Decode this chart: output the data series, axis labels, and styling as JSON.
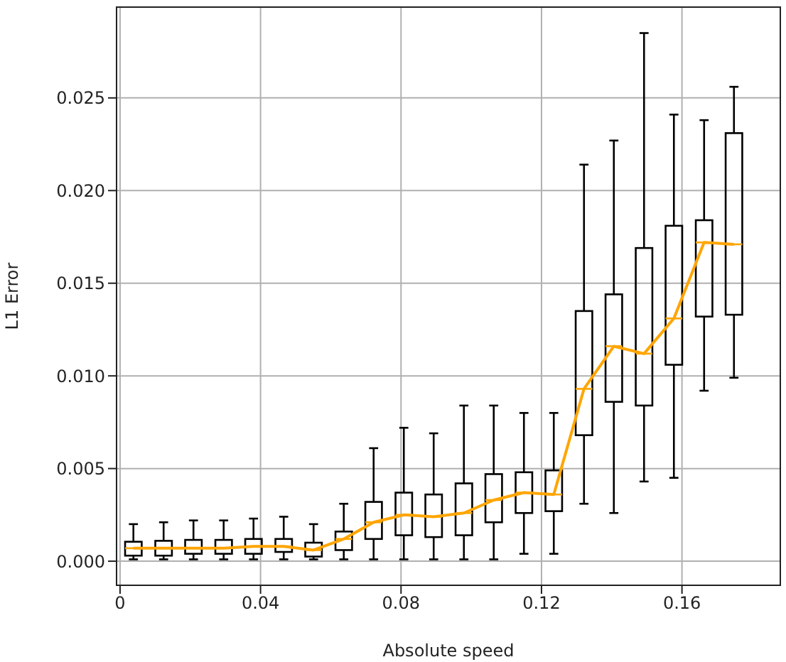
{
  "chart_data": {
    "type": "box",
    "xlabel": "Absolute speed",
    "ylabel": "L1 Error",
    "xlim": [
      -0.001,
      0.188
    ],
    "ylim": [
      -0.0013,
      0.0299
    ],
    "xticks": [
      0,
      0.04,
      0.08,
      0.12,
      0.16
    ],
    "yticks": [
      {
        "value": 0,
        "label": "0.000"
      },
      {
        "value": 0.005,
        "label": "0.005"
      },
      {
        "value": 0.01,
        "label": "0.010"
      },
      {
        "value": 0.015,
        "label": "0.015"
      },
      {
        "value": 0.02,
        "label": "0.020"
      },
      {
        "value": 0.025,
        "label": "0.025"
      }
    ],
    "grid": true,
    "series": [
      {
        "color": "#000000",
        "x": [
          0.0038,
          0.0124,
          0.0209,
          0.0295,
          0.038,
          0.0466,
          0.0551,
          0.0637,
          0.0722,
          0.0808,
          0.0893,
          0.0979,
          0.1064,
          0.115,
          0.1235,
          0.1321,
          0.1406,
          0.1492,
          0.1577,
          0.1663,
          0.1748
        ],
        "boxes": [
          {
            "low": 0.0001,
            "q1": 0.0003,
            "median": 0.0007,
            "q3": 0.00105,
            "high": 0.002
          },
          {
            "low": 0.0001,
            "q1": 0.0003,
            "median": 0.0007,
            "q3": 0.0011,
            "high": 0.0021
          },
          {
            "low": 0.0001,
            "q1": 0.0004,
            "median": 0.0007,
            "q3": 0.00115,
            "high": 0.0022
          },
          {
            "low": 0.0001,
            "q1": 0.0004,
            "median": 0.0007,
            "q3": 0.00115,
            "high": 0.0022
          },
          {
            "low": 0.0001,
            "q1": 0.0004,
            "median": 0.0008,
            "q3": 0.0012,
            "high": 0.0023
          },
          {
            "low": 0.0001,
            "q1": 0.0005,
            "median": 0.0008,
            "q3": 0.0012,
            "high": 0.0024
          },
          {
            "low": 0.0001,
            "q1": 0.00025,
            "median": 0.0006,
            "q3": 0.001,
            "high": 0.002
          },
          {
            "low": 0.0001,
            "q1": 0.0006,
            "median": 0.0012,
            "q3": 0.0016,
            "high": 0.0031
          },
          {
            "low": 0.0001,
            "q1": 0.0012,
            "median": 0.0021,
            "q3": 0.0032,
            "high": 0.0061
          },
          {
            "low": 0.0001,
            "q1": 0.0014,
            "median": 0.0025,
            "q3": 0.0037,
            "high": 0.0072
          },
          {
            "low": 0.0001,
            "q1": 0.0013,
            "median": 0.0024,
            "q3": 0.0036,
            "high": 0.0069
          },
          {
            "low": 0.0001,
            "q1": 0.0014,
            "median": 0.0026,
            "q3": 0.0042,
            "high": 0.0084
          },
          {
            "low": 0.0001,
            "q1": 0.0021,
            "median": 0.0033,
            "q3": 0.0047,
            "high": 0.0084
          },
          {
            "low": 0.0004,
            "q1": 0.0026,
            "median": 0.0037,
            "q3": 0.0048,
            "high": 0.008
          },
          {
            "low": 0.0004,
            "q1": 0.0027,
            "median": 0.0036,
            "q3": 0.0049,
            "high": 0.008
          },
          {
            "low": 0.0031,
            "q1": 0.0068,
            "median": 0.0093,
            "q3": 0.0135,
            "high": 0.0214
          },
          {
            "low": 0.0026,
            "q1": 0.0086,
            "median": 0.0116,
            "q3": 0.0144,
            "high": 0.0227
          },
          {
            "low": 0.0043,
            "q1": 0.0084,
            "median": 0.0112,
            "q3": 0.0169,
            "high": 0.0285
          },
          {
            "low": 0.0045,
            "q1": 0.0106,
            "median": 0.0131,
            "q3": 0.0181,
            "high": 0.0241
          },
          {
            "low": 0.0092,
            "q1": 0.0132,
            "median": 0.0172,
            "q3": 0.0184,
            "high": 0.0238
          },
          {
            "low": 0.0099,
            "q1": 0.0133,
            "median": 0.0171,
            "q3": 0.0231,
            "high": 0.0256
          }
        ]
      },
      {
        "type": "line",
        "color": "#ffa500",
        "x": [
          0.0038,
          0.0124,
          0.0209,
          0.0295,
          0.038,
          0.0466,
          0.0551,
          0.0637,
          0.0722,
          0.0808,
          0.0893,
          0.0979,
          0.1064,
          0.115,
          0.1235,
          0.1321,
          0.1406,
          0.1492,
          0.1577,
          0.1663,
          0.1748
        ],
        "values": [
          0.0007,
          0.0007,
          0.0007,
          0.0007,
          0.0008,
          0.0008,
          0.0006,
          0.0012,
          0.0021,
          0.0025,
          0.0024,
          0.0026,
          0.0033,
          0.0037,
          0.0036,
          0.0093,
          0.0116,
          0.0112,
          0.0131,
          0.0172,
          0.0171
        ]
      }
    ]
  }
}
